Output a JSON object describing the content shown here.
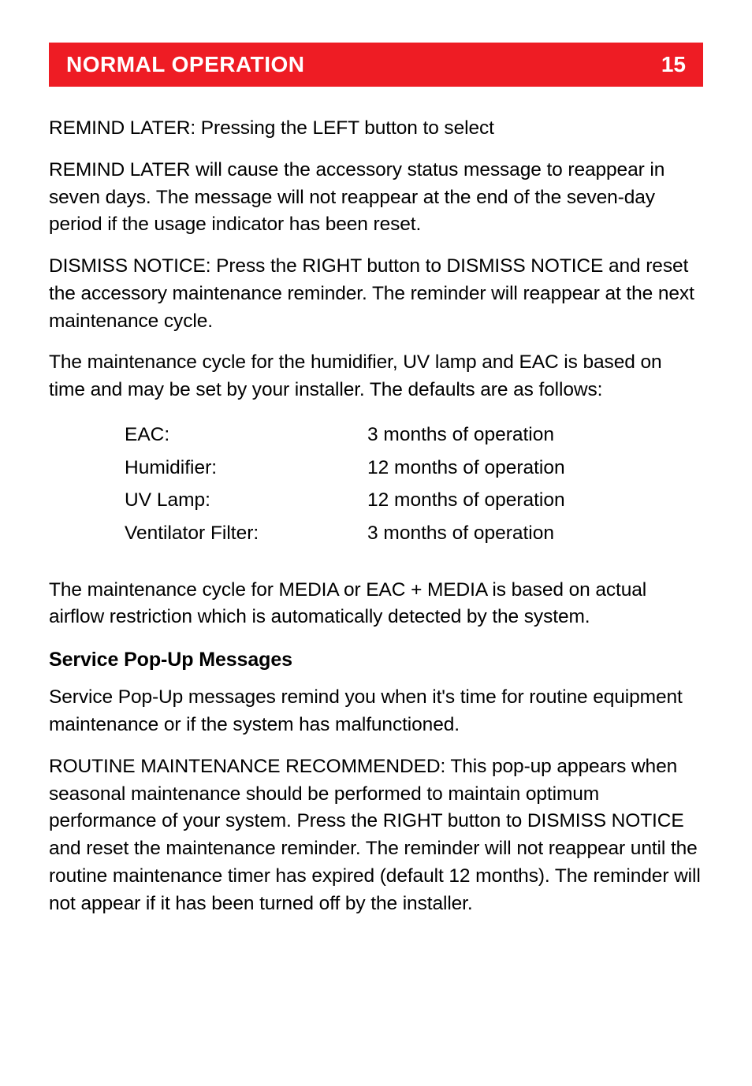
{
  "header": {
    "title": "NORMAL OPERATION",
    "page_number": "15",
    "bg_color": "#ee1c24",
    "text_color": "#ffffff"
  },
  "paragraphs": {
    "p1": "REMIND LATER: Pressing the LEFT button to select",
    "p2": "REMIND LATER will cause the accessory status message to reappear in seven days. The message will not reappear at the end of the seven-day period if the usage indicator has been reset.",
    "p3": "DISMISS NOTICE: Press the RIGHT button to DISMISS NOTICE and reset the accessory maintenance reminder. The reminder will reappear at the next maintenance cycle.",
    "p4": "The maintenance cycle for the humidifier, UV lamp and EAC is based on time and may be set by your installer. The defaults are as follows:",
    "p5": "The maintenance cycle for MEDIA or EAC + MEDIA is based on actual airflow restriction which is automatically detected by the system.",
    "p6": "Service Pop-Up messages remind you when it's time for routine equipment maintenance or if the system has malfunctioned.",
    "p7": "ROUTINE MAINTENANCE RECOMMENDED: This pop-up appears when seasonal maintenance should be performed to maintain optimum performance of your system. Press the RIGHT button to DISMISS NOTICE and reset the maintenance reminder. The reminder will not reappear until the routine maintenance timer has expired (default 12 months). The reminder will not appear if it has been turned off by the installer."
  },
  "maintenance_table": {
    "rows": [
      {
        "label": "EAC:",
        "value": "3 months of operation"
      },
      {
        "label": "Humidifier:",
        "value": "12 months of operation"
      },
      {
        "label": "UV Lamp:",
        "value": "12 months of operation"
      },
      {
        "label": "Ventilator Filter:",
        "value": "3 months of operation"
      }
    ]
  },
  "subheading": "Service Pop-Up Messages",
  "typography": {
    "body_fontsize": 24.5,
    "heading_fontsize": 28,
    "subheading_fontsize": 25,
    "body_color": "#000000",
    "background_color": "#ffffff"
  }
}
